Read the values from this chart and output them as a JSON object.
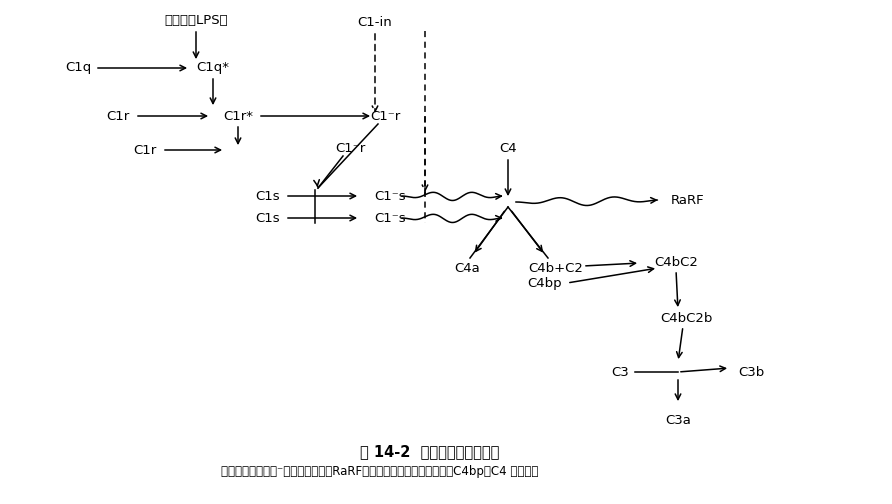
{
  "bg_color": "#ffffff",
  "title": "图 14-2  内毒素激活补体途径",
  "subtitle": "＊：激活的酶原；⁻：激活的补体；RaRF：补体激活凝集素反应因子；C4bp：C4 结合蛋白",
  "figsize": [
    8.92,
    5.04
  ],
  "dpi": 100,
  "labels": {
    "lps": "内毒素（LPS）",
    "c1q": "C1q",
    "c1qstar": "C1q*",
    "c1r1": "C1r",
    "c1rstar": "C1r*",
    "c1r2": "C1r",
    "c1in": "C1-in",
    "clrbar1": "C1⁻r",
    "clrbar2": "C1⁻r",
    "c1s1": "C1s",
    "c1s2": "C1s",
    "clsbar1": "C1⁻s",
    "clsbar2": "C1⁻s",
    "c4": "C4",
    "rarf": "RaRF",
    "c4a": "C4a",
    "c4bc2": "C4b+C2",
    "c4bc2r": "C4bC2",
    "c4bp": "C4bp",
    "c4bc2b": "C4bC2b",
    "c3": "C3",
    "c3b": "C3b",
    "c3a": "C3a"
  }
}
